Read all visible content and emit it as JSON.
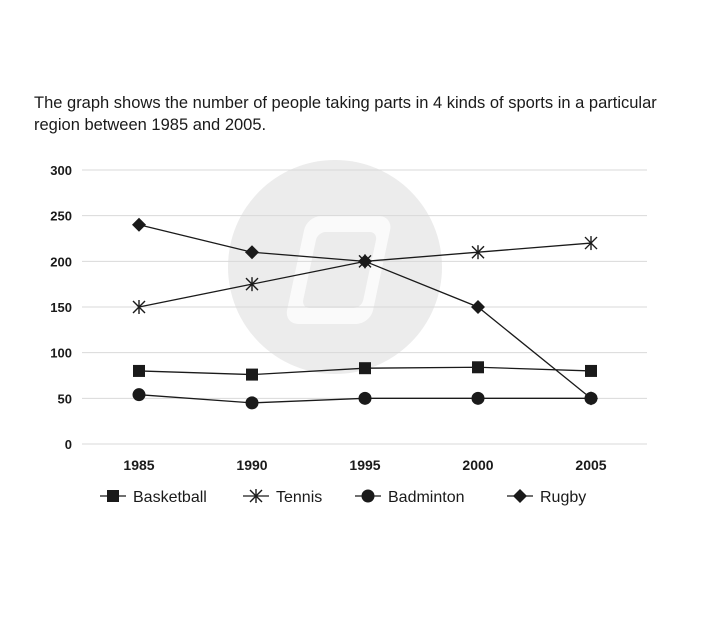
{
  "caption": "The graph shows the number of people taking parts in 4 kinds of sports in a particular region between 1985 and 2005.",
  "colors": {
    "line": "#1a1a1a",
    "grid": "#d9d9d9",
    "watermark": "#ececec"
  },
  "watermark_icon": "pen-logo-watermark",
  "chart_data": {
    "type": "line",
    "title": "",
    "xlabel": "",
    "ylabel": "",
    "categories": [
      "1985",
      "1990",
      "1995",
      "2000",
      "2005"
    ],
    "ylim": [
      0,
      300
    ],
    "yticks": [
      0,
      50,
      100,
      150,
      200,
      250,
      300
    ],
    "grid": true,
    "legend_position": "bottom",
    "series": [
      {
        "name": "Basketball",
        "marker": "square",
        "values": [
          80,
          76,
          83,
          84,
          80
        ]
      },
      {
        "name": "Tennis",
        "marker": "star",
        "values": [
          150,
          175,
          200,
          210,
          220
        ]
      },
      {
        "name": "Badminton",
        "marker": "circle",
        "values": [
          54,
          45,
          50,
          50,
          50
        ]
      },
      {
        "name": "Rugby",
        "marker": "diamond",
        "values": [
          240,
          210,
          200,
          150,
          50
        ]
      }
    ]
  }
}
